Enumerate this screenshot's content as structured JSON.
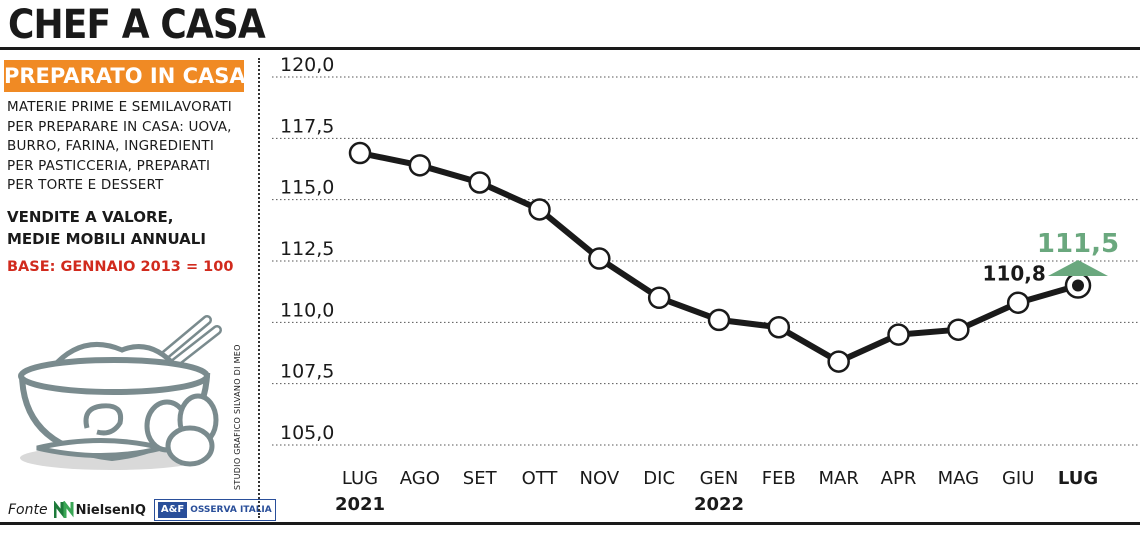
{
  "title": "CHEF A CASA",
  "panel": {
    "badge": "PREPARATO IN CASA",
    "description": [
      "MATERIE PRIME E SEMILAVORATI",
      "PER PREPARARE IN CASA: UOVA,",
      "BURRO, FARINA, INGREDIENTI",
      "PER PASTICCERIA,  PREPARATI",
      "PER TORTE E DESSERT"
    ],
    "measure": [
      "VENDITE A VALORE,",
      "MEDIE MOBILI ANNUALI"
    ],
    "base": "BASE: GENNAIO 2013 = 100",
    "credit": "STUDIO GRAFICO SILVANO DI MEO",
    "source_label": "Fonte",
    "sources": [
      "NielsenIQ",
      "OSSERVA ITALIA"
    ]
  },
  "colors": {
    "accent": "#f08a24",
    "base_text": "#d12a1d",
    "highlight": "#6aa87e",
    "line": "#1a1a1a"
  },
  "chart_data": {
    "type": "line",
    "categories": [
      "LUG",
      "AGO",
      "SET",
      "OTT",
      "NOV",
      "DIC",
      "GEN",
      "FEB",
      "MAR",
      "APR",
      "MAG",
      "GIU",
      "LUG"
    ],
    "year_labels": [
      {
        "index": 0,
        "label": "2021"
      },
      {
        "index": 6,
        "label": "2022"
      }
    ],
    "series": [
      {
        "values": [
          116.9,
          116.4,
          115.7,
          114.6,
          112.6,
          111.0,
          110.1,
          109.8,
          108.4,
          109.5,
          109.7,
          110.8,
          111.5
        ]
      }
    ],
    "yticks": [
      "120,0",
      "117,5",
      "115,0",
      "112,5",
      "110,0",
      "107,5",
      "105,0"
    ],
    "ylim": [
      105,
      120
    ],
    "grid": "horizontal dotted",
    "data_labels": [
      {
        "index": 11,
        "text": "110,8"
      },
      {
        "index": 12,
        "text": "111,5",
        "highlight": true
      }
    ],
    "highlight_last": true
  }
}
